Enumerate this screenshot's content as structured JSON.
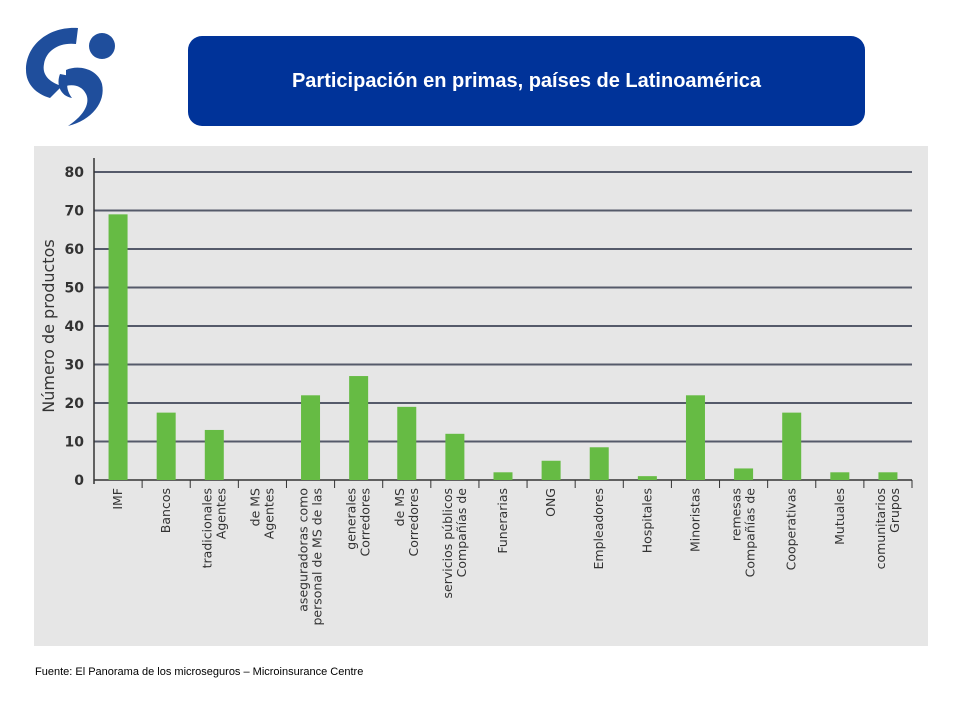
{
  "header": {
    "title": "Participación en primas, países de Latinoamérica"
  },
  "logo": {
    "icon": "microinsurance-logo-icon",
    "color": "#1f4e9c"
  },
  "colors": {
    "banner": "#003399",
    "bar": "#66bb44",
    "grid": "#555a6a",
    "panel": "#e6e6e6"
  },
  "chart_data": {
    "type": "bar",
    "title": "",
    "xlabel": "",
    "ylabel": "Número de productos",
    "ylim": [
      0,
      80
    ],
    "yticks": [
      0,
      10,
      20,
      30,
      40,
      50,
      60,
      70,
      80
    ],
    "grid": true,
    "categories": [
      [
        "IMF"
      ],
      [
        "Bancos"
      ],
      [
        "Agentes",
        "tradicionales"
      ],
      [
        "Agentes",
        "de MS"
      ],
      [
        "personal de MS de las",
        "aseguradoras como"
      ],
      [
        "Corredores",
        "generales"
      ],
      [
        "Corredores",
        "de MS"
      ],
      [
        "Compañías de",
        "servicios públicos"
      ],
      [
        "Funerarias"
      ],
      [
        "ONG"
      ],
      [
        "Empleadores"
      ],
      [
        "Hospitales"
      ],
      [
        "Minoristas"
      ],
      [
        "Compañías de",
        "remesas"
      ],
      [
        "Cooperativas"
      ],
      [
        "Mutuales"
      ],
      [
        "Grupos",
        "comunitarios"
      ]
    ],
    "values": [
      69,
      17.5,
      13,
      0,
      22,
      27,
      19,
      12,
      2,
      5,
      8.5,
      1,
      22,
      3,
      17.5,
      2,
      2
    ]
  },
  "footer": {
    "source": "Fuente: El Panorama de los microseguros – Microinsurance Centre"
  }
}
